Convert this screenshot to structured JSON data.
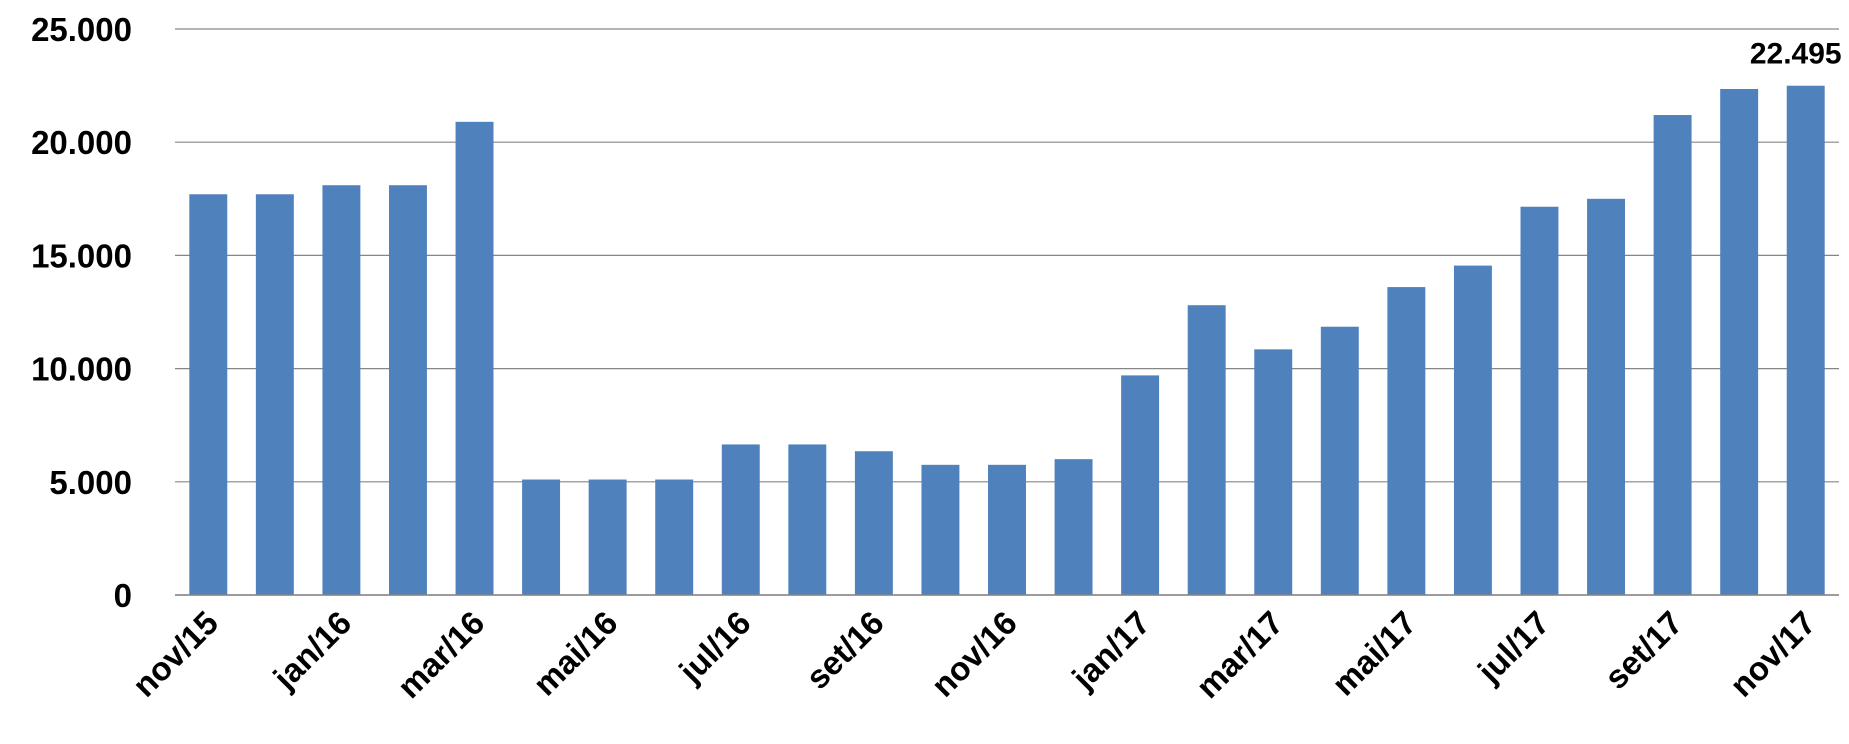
{
  "chart_data": {
    "type": "bar",
    "categories": [
      "nov/15",
      null,
      "jan/16",
      null,
      "mar/16",
      null,
      "mai/16",
      null,
      "jul/16",
      null,
      "set/16",
      null,
      "nov/16",
      null,
      "jan/17",
      null,
      "mar/17",
      null,
      "mai/17",
      null,
      "jul/17",
      null,
      "set/17",
      null,
      "nov/17"
    ],
    "values": [
      17700,
      17700,
      18100,
      18100,
      20900,
      5100,
      5100,
      5100,
      6650,
      6650,
      6350,
      5750,
      5750,
      6000,
      9700,
      12800,
      10850,
      11850,
      13600,
      14550,
      17150,
      17500,
      21200,
      22350,
      22495
    ],
    "value_labels": [
      null,
      null,
      null,
      null,
      null,
      null,
      null,
      null,
      null,
      null,
      null,
      null,
      null,
      null,
      null,
      null,
      null,
      null,
      null,
      null,
      null,
      null,
      null,
      null,
      "22.495"
    ],
    "color": "#4f81bd",
    "ylim": [
      0,
      25000
    ],
    "yticks": [
      0,
      {
        "value": 5000,
        "label": "5.000"
      },
      {
        "value": 10000,
        "label": "10.000"
      },
      {
        "value": 15000,
        "label": "15.000"
      },
      {
        "value": 20000,
        "label": "20.000"
      },
      {
        "value": 25000,
        "label": "25.000"
      }
    ],
    "grid": true
  }
}
